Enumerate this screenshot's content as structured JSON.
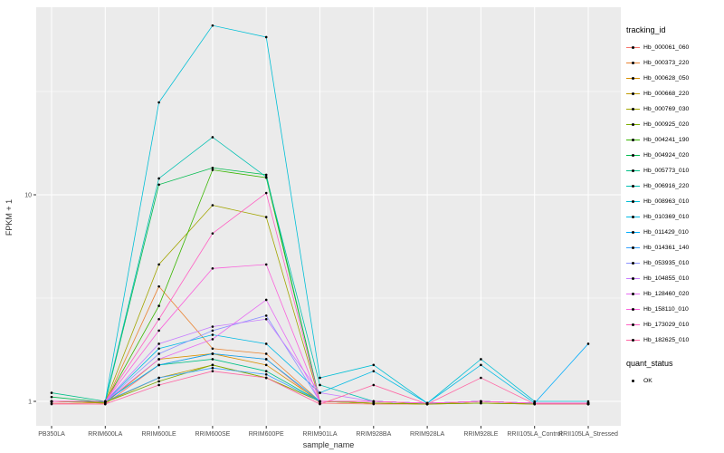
{
  "figure": {
    "y_axis_title": "FPKM + 1",
    "x_axis_title": "sample_name",
    "legend_title": "tracking_id",
    "quant_legend_title": "quant_status",
    "quant_legend_entry": "OK",
    "panel_bg": "#EBEBEB",
    "grid_color": "#FFFFFF",
    "tick_text_color": "#4D4D4D"
  },
  "chart_data": {
    "type": "line",
    "title": "",
    "xlabel": "sample_name",
    "ylabel": "FPKM + 1",
    "y_scale": "log10",
    "y_ticks": [
      1,
      10
    ],
    "y_minor_ticks": [
      3.162,
      31.62
    ],
    "ylim": [
      0.76,
      81
    ],
    "legend_position": "right",
    "point_legend": {
      "title": "quant_status",
      "entries": [
        "OK"
      ]
    },
    "categories": [
      "PB350LA",
      "RRIM600LA",
      "RRIM600LE",
      "RRIM600SE",
      "RRIM600PE",
      "RRIM901LA",
      "RRIM928BA",
      "RRIM928LA",
      "RRIM928LE",
      "RRII105LA_Control",
      "RRII105LA_Stressed"
    ],
    "series": [
      {
        "name": "Hb_000061_060",
        "color": "#F8766D",
        "values": [
          0.98,
          0.97,
          1.5,
          1.7,
          1.6,
          0.98,
          0.97,
          0.97,
          0.98,
          0.97,
          0.97
        ]
      },
      {
        "name": "Hb_000373_220",
        "color": "#EA8331",
        "values": [
          1.0,
          0.98,
          3.6,
          1.8,
          1.7,
          1.0,
          0.98,
          0.97,
          1.0,
          0.98,
          0.97
        ]
      },
      {
        "name": "Hb_000628_050",
        "color": "#D89000",
        "values": [
          1.0,
          0.98,
          1.6,
          1.7,
          1.5,
          1.0,
          0.98,
          0.97,
          1.0,
          0.97,
          0.97
        ]
      },
      {
        "name": "Hb_000668_220",
        "color": "#C09B00",
        "values": [
          1.0,
          0.99,
          1.3,
          1.5,
          1.3,
          1.0,
          0.98,
          0.97,
          0.98,
          0.97,
          0.97
        ]
      },
      {
        "name": "Hb_000769_030",
        "color": "#A3A500",
        "values": [
          1.0,
          0.99,
          4.6,
          8.9,
          7.8,
          1.0,
          1.0,
          0.97,
          1.0,
          0.98,
          0.97
        ]
      },
      {
        "name": "Hb_000925_020",
        "color": "#7CAE00",
        "values": [
          1.0,
          0.99,
          1.25,
          1.5,
          1.3,
          1.0,
          0.98,
          0.97,
          0.98,
          0.97,
          0.97
        ]
      },
      {
        "name": "Hb_004241_190",
        "color": "#39B600",
        "values": [
          1.0,
          0.99,
          2.9,
          13.2,
          12.1,
          1.0,
          1.0,
          0.98,
          1.0,
          0.98,
          0.98
        ]
      },
      {
        "name": "Hb_004924_020",
        "color": "#00BB4E",
        "values": [
          1.05,
          0.99,
          11.2,
          13.5,
          12.5,
          1.0,
          1.0,
          0.98,
          1.0,
          0.98,
          0.98
        ]
      },
      {
        "name": "Hb_005773_010",
        "color": "#00C087",
        "values": [
          1.1,
          1.0,
          1.5,
          1.6,
          1.4,
          1.0,
          1.0,
          0.98,
          1.0,
          0.98,
          0.98
        ]
      },
      {
        "name": "Hb_006916_220",
        "color": "#00C0B2",
        "values": [
          1.0,
          1.0,
          12.0,
          19.0,
          12.2,
          1.2,
          1.0,
          0.98,
          1.0,
          0.98,
          0.98
        ]
      },
      {
        "name": "Hb_008963_010",
        "color": "#00BFD6",
        "values": [
          1.0,
          1.0,
          28.0,
          66.0,
          58.0,
          1.3,
          1.5,
          0.98,
          1.6,
          1.0,
          1.0
        ]
      },
      {
        "name": "Hb_010369_010",
        "color": "#00BAE5",
        "values": [
          1.0,
          1.0,
          1.8,
          2.1,
          1.9,
          1.1,
          1.4,
          0.98,
          1.5,
          0.98,
          0.98
        ]
      },
      {
        "name": "Hb_011429_010",
        "color": "#00ACFC",
        "values": [
          1.0,
          1.0,
          1.5,
          1.7,
          1.6,
          1.0,
          1.0,
          0.98,
          1.0,
          0.98,
          1.9
        ]
      },
      {
        "name": "Hb_014361_140",
        "color": "#35A2FF",
        "values": [
          1.0,
          1.0,
          1.3,
          1.45,
          1.35,
          1.0,
          1.0,
          0.98,
          1.0,
          0.98,
          0.98
        ]
      },
      {
        "name": "Hb_053935_010",
        "color": "#8B93FF",
        "values": [
          1.0,
          1.0,
          1.7,
          2.2,
          2.6,
          1.0,
          1.0,
          0.98,
          1.0,
          0.98,
          0.98
        ]
      },
      {
        "name": "Hb_104855_010",
        "color": "#C77CFF",
        "values": [
          1.0,
          1.0,
          1.9,
          2.3,
          2.5,
          1.1,
          1.0,
          0.98,
          1.0,
          0.98,
          0.98
        ]
      },
      {
        "name": "Hb_128460_020",
        "color": "#E76BF3",
        "values": [
          1.0,
          1.0,
          1.6,
          2.0,
          3.1,
          1.0,
          1.0,
          0.98,
          1.0,
          0.98,
          0.98
        ]
      },
      {
        "name": "Hb_158110_010",
        "color": "#FA62DB",
        "values": [
          1.0,
          1.0,
          2.2,
          4.4,
          4.6,
          1.0,
          1.0,
          0.98,
          1.0,
          0.98,
          0.98
        ]
      },
      {
        "name": "Hb_173029_010",
        "color": "#FF61C3",
        "values": [
          1.0,
          1.0,
          2.5,
          6.5,
          10.2,
          1.0,
          1.0,
          0.98,
          1.0,
          0.98,
          0.98
        ]
      },
      {
        "name": "Hb_182625_010",
        "color": "#FF67A4",
        "values": [
          0.97,
          0.97,
          1.2,
          1.4,
          1.3,
          0.97,
          1.2,
          0.97,
          1.3,
          0.97,
          0.97
        ]
      }
    ]
  }
}
